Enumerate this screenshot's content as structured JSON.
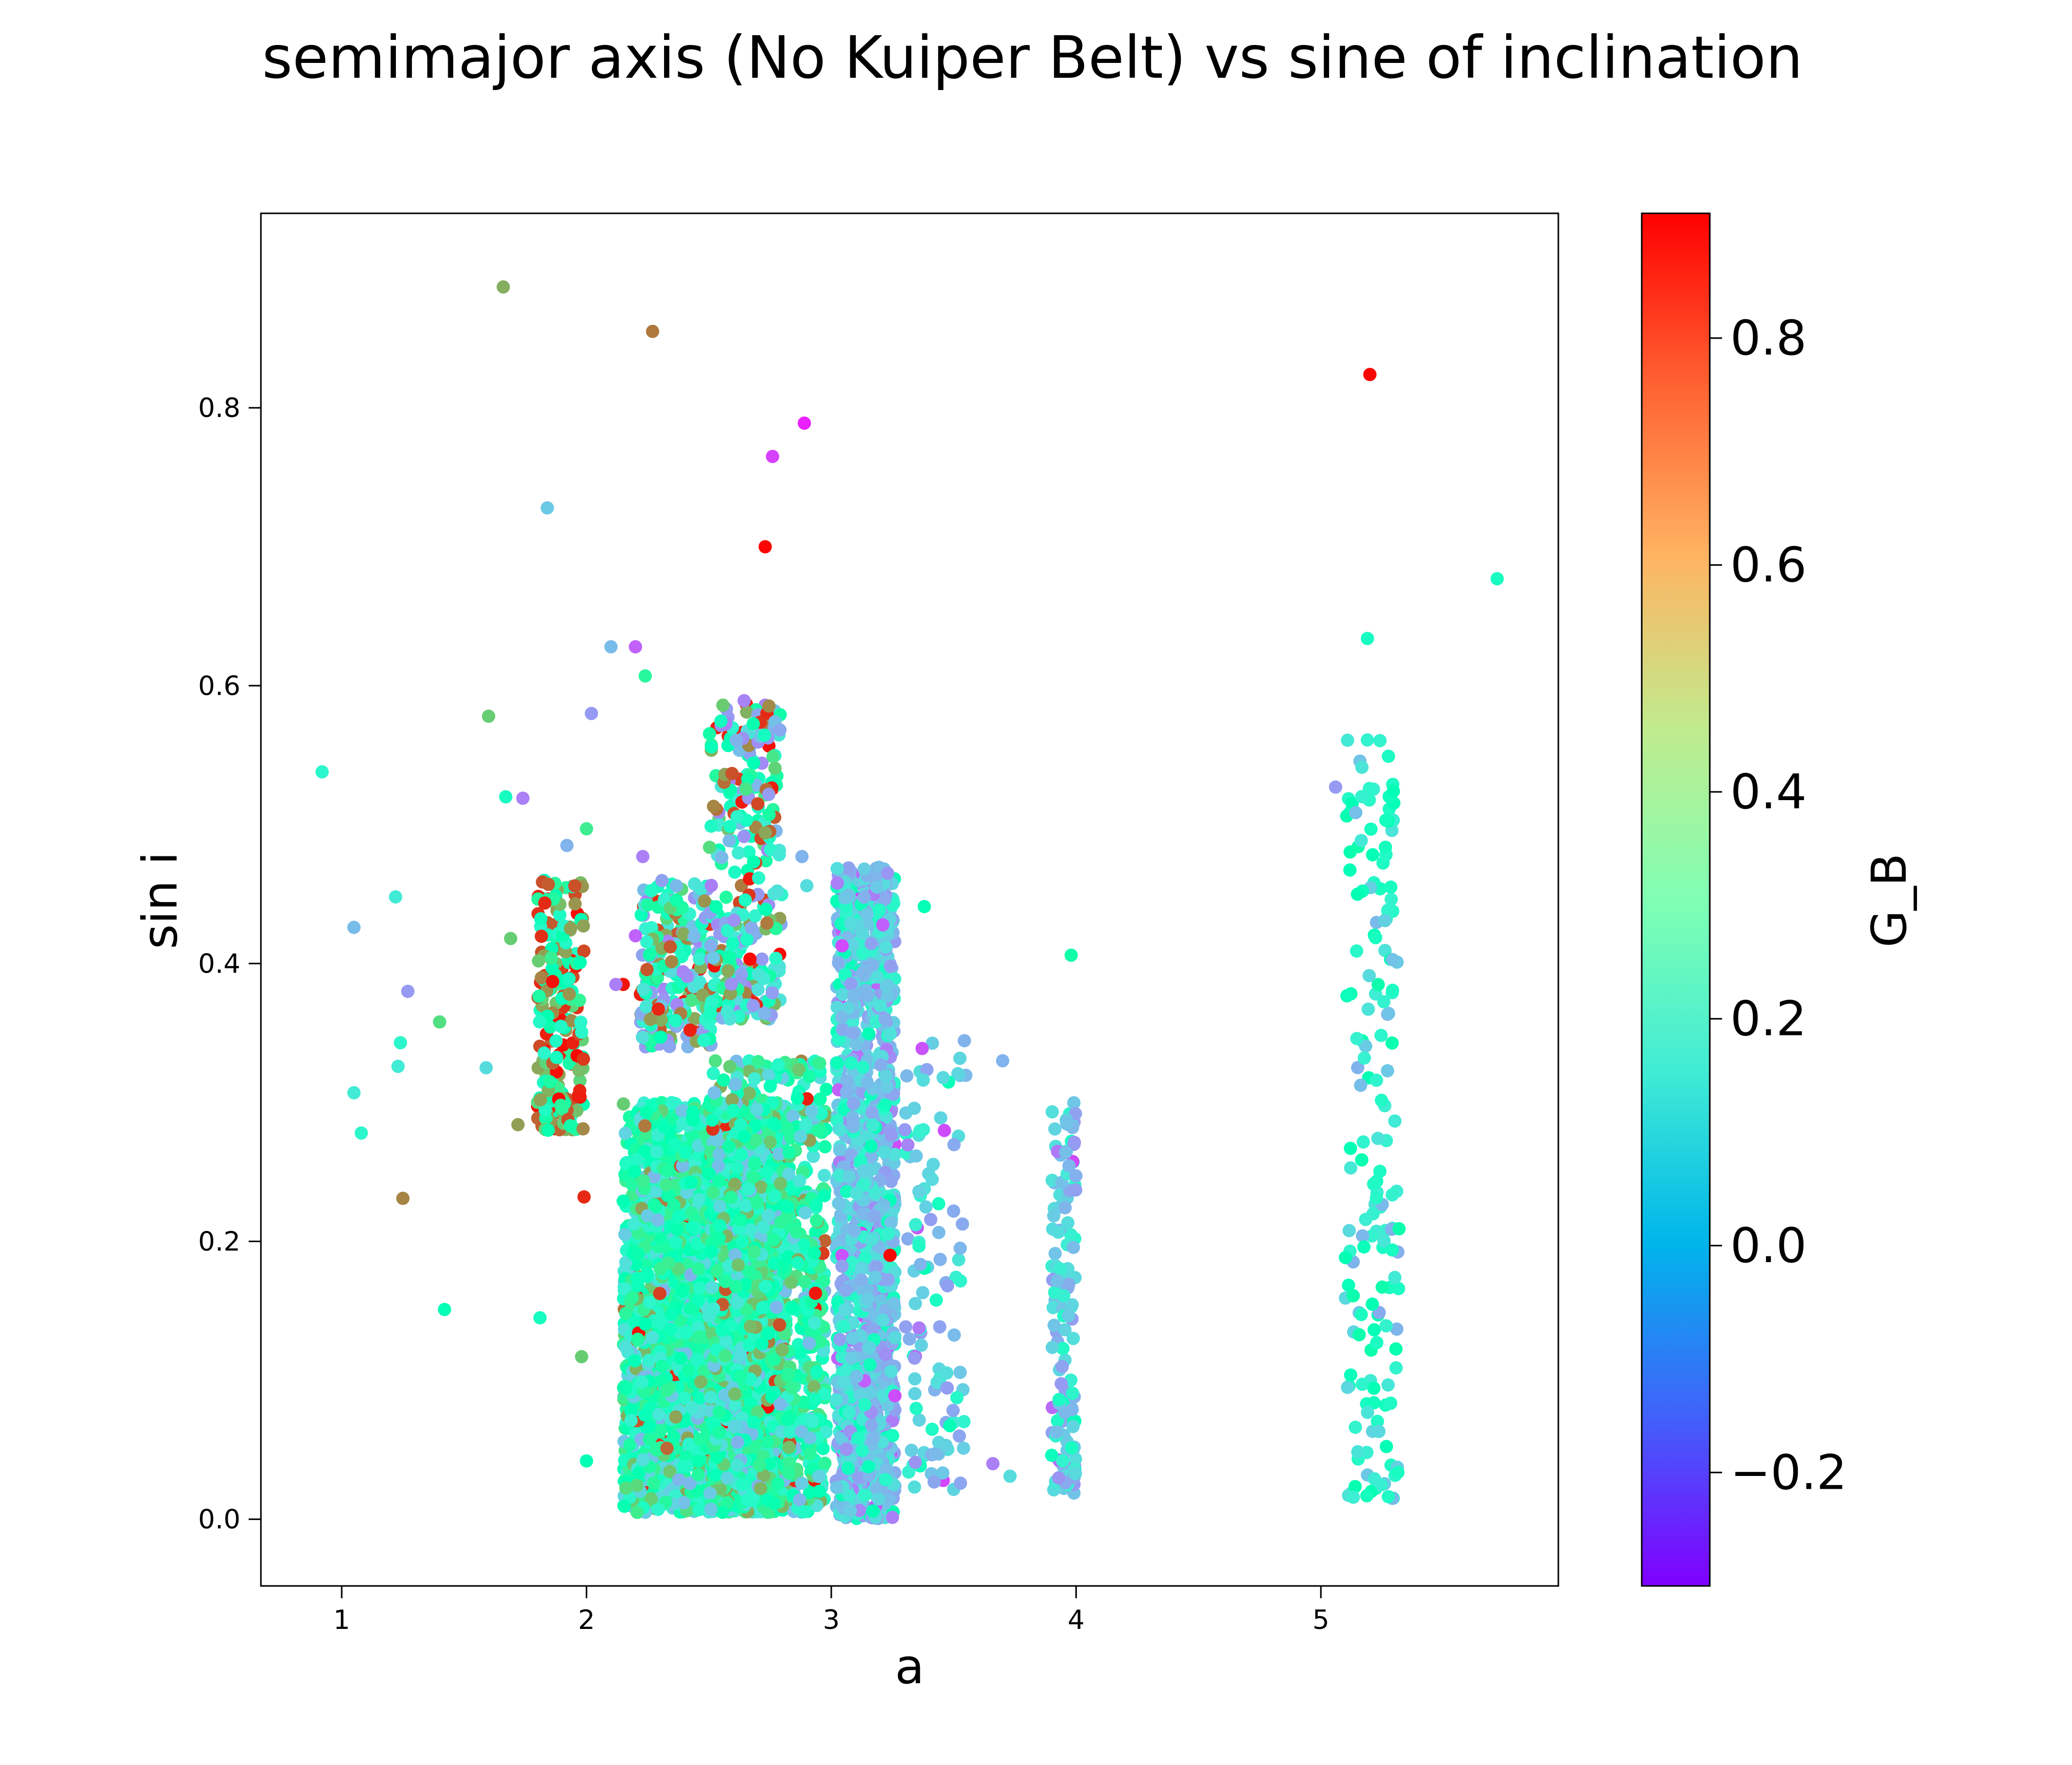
{
  "chart_data": {
    "type": "scatter",
    "title": "semimajor axis (No Kuiper Belt) vs sine of inclination",
    "xlabel": "a",
    "ylabel": "sin i",
    "xlim": [
      0.67,
      5.97
    ],
    "ylim": [
      -0.048,
      0.94
    ],
    "xticks": [
      1,
      2,
      3,
      4,
      5
    ],
    "xtick_labels": [
      "1",
      "2",
      "3",
      "4",
      "5"
    ],
    "yticks": [
      0.0,
      0.2,
      0.4,
      0.6,
      0.8
    ],
    "ytick_labels": [
      "0.0",
      "0.2",
      "0.4",
      "0.6",
      "0.8"
    ],
    "grid": false,
    "colorbar": {
      "label": "G_B",
      "range": [
        -0.3,
        0.91
      ],
      "ticks": [
        -0.2,
        0.0,
        0.2,
        0.4,
        0.6,
        0.8
      ],
      "tick_labels": [
        "−0.2",
        "0.0",
        "0.2",
        "0.4",
        "0.6",
        "0.8"
      ],
      "colormap": "rainbow"
    },
    "points": [
      {
        "a": 1.66,
        "sin_i": 0.887,
        "g": 0.62
      },
      {
        "a": 2.27,
        "sin_i": 0.855,
        "g": 0.72
      },
      {
        "a": 5.2,
        "sin_i": 0.824,
        "g": 0.9
      },
      {
        "a": 2.89,
        "sin_i": 0.789,
        "g": -0.25
      },
      {
        "a": 2.76,
        "sin_i": 0.765,
        "g": -0.2
      },
      {
        "a": 1.84,
        "sin_i": 0.728,
        "g": 0.05
      },
      {
        "a": 2.73,
        "sin_i": 0.7,
        "g": 0.9
      },
      {
        "a": 5.72,
        "sin_i": 0.677,
        "g": 0.25
      },
      {
        "a": 5.19,
        "sin_i": 0.634,
        "g": 0.25
      },
      {
        "a": 2.1,
        "sin_i": 0.628,
        "g": 0.02
      },
      {
        "a": 2.2,
        "sin_i": 0.628,
        "g": -0.15
      },
      {
        "a": 2.24,
        "sin_i": 0.607,
        "g": 0.4
      },
      {
        "a": 2.02,
        "sin_i": 0.58,
        "g": -0.05
      },
      {
        "a": 1.6,
        "sin_i": 0.578,
        "g": 0.55
      },
      {
        "a": 0.92,
        "sin_i": 0.538,
        "g": 0.2
      },
      {
        "a": 1.67,
        "sin_i": 0.52,
        "g": 0.25
      },
      {
        "a": 1.74,
        "sin_i": 0.519,
        "g": -0.1
      },
      {
        "a": 5.06,
        "sin_i": 0.527,
        "g": -0.05
      },
      {
        "a": 1.92,
        "sin_i": 0.485,
        "g": 0.0
      },
      {
        "a": 2.0,
        "sin_i": 0.497,
        "g": 0.45
      },
      {
        "a": 2.23,
        "sin_i": 0.477,
        "g": -0.1
      },
      {
        "a": 1.22,
        "sin_i": 0.448,
        "g": 0.15
      },
      {
        "a": 1.05,
        "sin_i": 0.426,
        "g": 0.02
      },
      {
        "a": 1.69,
        "sin_i": 0.418,
        "g": 0.55
      },
      {
        "a": 1.27,
        "sin_i": 0.38,
        "g": -0.05
      },
      {
        "a": 1.4,
        "sin_i": 0.358,
        "g": 0.5
      },
      {
        "a": 1.24,
        "sin_i": 0.343,
        "g": 0.2
      },
      {
        "a": 1.23,
        "sin_i": 0.326,
        "g": 0.15
      },
      {
        "a": 1.59,
        "sin_i": 0.325,
        "g": 0.1
      },
      {
        "a": 1.05,
        "sin_i": 0.307,
        "g": 0.15
      },
      {
        "a": 1.08,
        "sin_i": 0.278,
        "g": 0.2
      },
      {
        "a": 1.72,
        "sin_i": 0.284,
        "g": 0.65
      },
      {
        "a": 1.25,
        "sin_i": 0.231,
        "g": 0.7
      },
      {
        "a": 1.99,
        "sin_i": 0.232,
        "g": 0.85
      },
      {
        "a": 1.42,
        "sin_i": 0.151,
        "g": 0.3
      },
      {
        "a": 1.81,
        "sin_i": 0.145,
        "g": 0.25
      },
      {
        "a": 1.98,
        "sin_i": 0.117,
        "g": 0.55
      },
      {
        "a": 2.0,
        "sin_i": 0.042,
        "g": 0.3
      },
      {
        "a": 3.66,
        "sin_i": 0.04,
        "g": -0.1
      },
      {
        "a": 3.73,
        "sin_i": 0.031,
        "g": 0.1
      },
      {
        "a": 3.7,
        "sin_i": 0.33,
        "g": 0.0
      },
      {
        "a": 3.98,
        "sin_i": 0.406,
        "g": 0.35
      },
      {
        "a": 3.38,
        "sin_i": 0.441,
        "g": 0.3
      },
      {
        "a": 3.34,
        "sin_i": 0.116,
        "g": -0.05
      },
      {
        "a": 2.15,
        "sin_i": 0.385,
        "g": 0.88
      },
      {
        "a": 2.12,
        "sin_i": 0.385,
        "g": -0.1
      },
      {
        "a": 2.2,
        "sin_i": 0.42,
        "g": -0.15
      },
      {
        "a": 3.24,
        "sin_i": 0.19,
        "g": 0.9
      },
      {
        "a": 2.9,
        "sin_i": 0.456,
        "g": 0.1
      },
      {
        "a": 2.88,
        "sin_i": 0.477,
        "g": 0.0
      }
    ],
    "clusters": [
      {
        "a_min": 1.8,
        "a_max": 1.99,
        "sin_min": 0.28,
        "sin_max": 0.46,
        "n": 230,
        "palette": "hot",
        "seed": 11
      },
      {
        "a_min": 2.22,
        "a_max": 2.52,
        "sin_min": 0.34,
        "sin_max": 0.46,
        "n": 240,
        "palette": "mixed",
        "seed": 12
      },
      {
        "a_min": 2.5,
        "a_max": 2.8,
        "sin_min": 0.36,
        "sin_max": 0.59,
        "n": 300,
        "palette": "mixed",
        "seed": 13
      },
      {
        "a_min": 2.15,
        "a_max": 2.82,
        "sin_min": 0.005,
        "sin_max": 0.3,
        "n": 2600,
        "palette": "warm",
        "seed": 14
      },
      {
        "a_min": 2.5,
        "a_max": 2.98,
        "sin_min": 0.005,
        "sin_max": 0.33,
        "n": 1100,
        "palette": "warm",
        "seed": 15
      },
      {
        "a_min": 3.02,
        "a_max": 3.26,
        "sin_min": 0.0,
        "sin_max": 0.47,
        "n": 1300,
        "palette": "cool",
        "seed": 16
      },
      {
        "a_min": 3.3,
        "a_max": 3.55,
        "sin_min": 0.02,
        "sin_max": 0.35,
        "n": 110,
        "palette": "cool",
        "seed": 17
      },
      {
        "a_min": 3.9,
        "a_max": 4.0,
        "sin_min": 0.015,
        "sin_max": 0.3,
        "n": 140,
        "palette": "cool",
        "seed": 18
      },
      {
        "a_min": 5.1,
        "a_max": 5.32,
        "sin_min": 0.015,
        "sin_max": 0.57,
        "n": 170,
        "palette": "teal",
        "seed": 19
      }
    ]
  }
}
